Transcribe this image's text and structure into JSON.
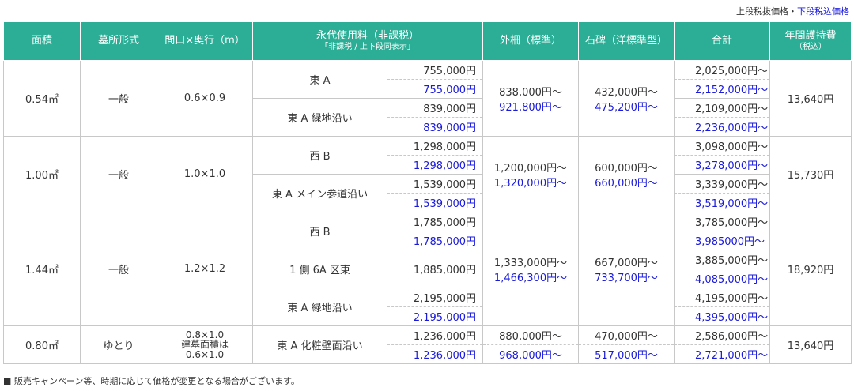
{
  "legend": {
    "excl": "上段税抜価格",
    "sep": "・",
    "incl": "下段税込価格"
  },
  "header": {
    "area": "面積",
    "type": "墓所形式",
    "size": "間口×奥行（m）",
    "fee": "永代使用料（非課税）",
    "fee_sub": "「非課税 / 上下段同表示」",
    "fence": "外柵（標準）",
    "stone": "石碑（洋標準型）",
    "total": "合計",
    "annual": "年間護持費",
    "annual_sub": "（税込）"
  },
  "groups": [
    {
      "area": "0.54㎡",
      "type": "一般",
      "size": "0.6×0.9",
      "fence": {
        "excl": "838,000円〜",
        "incl": "921,800円〜"
      },
      "stone": {
        "excl": "432,000円〜",
        "incl": "475,200円〜"
      },
      "annual": "13,640円",
      "plots": [
        {
          "name": "東 A",
          "fee_excl": "755,000円",
          "fee_incl": "755,000円",
          "total_excl": "2,025,000円〜",
          "total_incl": "2,152,000円〜"
        },
        {
          "name": "東 A 緑地沿い",
          "fee_excl": "839,000円",
          "fee_incl": "839,000円",
          "total_excl": "2,109,000円〜",
          "total_incl": "2,236,000円〜"
        }
      ]
    },
    {
      "area": "1.00㎡",
      "type": "一般",
      "size": "1.0×1.0",
      "fence": {
        "excl": "1,200,000円〜",
        "incl": "1,320,000円〜"
      },
      "stone": {
        "excl": "600,000円〜",
        "incl": "660,000円〜"
      },
      "annual": "15,730円",
      "plots": [
        {
          "name": "西 B",
          "fee_excl": "1,298,000円",
          "fee_incl": "1,298,000円",
          "total_excl": "3,098,000円〜",
          "total_incl": "3,278,000円〜"
        },
        {
          "name": "東 A メイン参道沿い",
          "fee_excl": "1,539,000円",
          "fee_incl": "1,539,000円",
          "total_excl": "3,339,000円〜",
          "total_incl": "3,519,000円〜"
        }
      ]
    },
    {
      "area": "1.44㎡",
      "type": "一般",
      "size": "1.2×1.2",
      "fence": {
        "excl": "1,333,000円〜",
        "incl": "1,466,300円〜"
      },
      "stone": {
        "excl": "667,000円〜",
        "incl": "733,700円〜"
      },
      "annual": "18,920円",
      "plots": [
        {
          "name": "西 B",
          "fee_excl": "1,785,000円",
          "fee_incl": "1,785,000円",
          "total_excl": "3,785,000円〜",
          "total_incl": "3,985000円〜"
        },
        {
          "name": "1 側 6A 区東",
          "fee_single": "1,885,000円",
          "total_excl": "3,885,000円〜",
          "total_incl": "4,085,000円〜"
        },
        {
          "name": "東 A 緑地沿い",
          "fee_excl": "2,195,000円",
          "fee_incl": "2,195,000円",
          "total_excl": "4,195,000円〜",
          "total_incl": "4,395,000円〜"
        }
      ]
    },
    {
      "area": "0.80㎡",
      "type": "ゆとり",
      "size_lines": [
        "0.8×1.0",
        "建墓面積は",
        "0.6×1.0"
      ],
      "fence": {
        "excl": "880,000円〜",
        "incl": "968,000円〜"
      },
      "stone": {
        "excl": "470,000円〜",
        "incl": "517,000円〜"
      },
      "annual": "13,640円",
      "plots": [
        {
          "name": "東 A 化粧壁面沿い",
          "fee_excl": "1,236,000円",
          "fee_incl": "1,236,000円",
          "total_excl": "2,586,000円〜",
          "total_incl": "2,721,000円〜"
        }
      ]
    }
  ],
  "note": "■ 販売キャンペーン等、時期に応じて価格が変更となる場合がございます。"
}
